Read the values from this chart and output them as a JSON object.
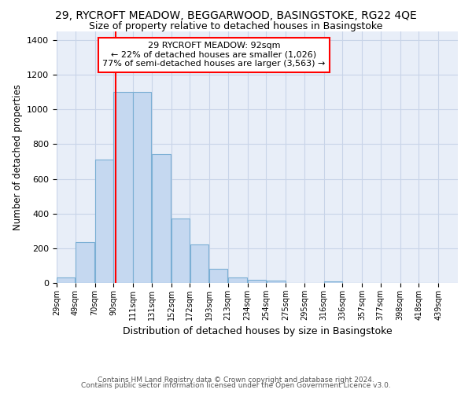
{
  "title_line1": "29, RYCROFT MEADOW, BEGGARWOOD, BASINGSTOKE, RG22 4QE",
  "title_line2": "Size of property relative to detached houses in Basingstoke",
  "xlabel": "Distribution of detached houses by size in Basingstoke",
  "ylabel": "Number of detached properties",
  "footnote_line1": "Contains HM Land Registry data © Crown copyright and database right 2024.",
  "footnote_line2": "Contains public sector information licensed under the Open Government Licence v3.0.",
  "bar_left_edges": [
    29,
    49,
    70,
    90,
    111,
    131,
    152,
    172,
    193,
    213,
    234,
    254,
    275,
    295,
    316,
    336,
    357,
    377,
    398,
    418
  ],
  "bar_widths": [
    20,
    21,
    20,
    21,
    20,
    21,
    20,
    20,
    20,
    21,
    20,
    21,
    20,
    21,
    20,
    21,
    20,
    21,
    20,
    21
  ],
  "bar_heights": [
    30,
    235,
    710,
    1100,
    1100,
    745,
    370,
    220,
    80,
    30,
    20,
    15,
    0,
    0,
    10,
    0,
    0,
    0,
    0,
    0
  ],
  "tick_labels": [
    "29sqm",
    "49sqm",
    "70sqm",
    "90sqm",
    "111sqm",
    "131sqm",
    "152sqm",
    "172sqm",
    "193sqm",
    "213sqm",
    "234sqm",
    "254sqm",
    "275sqm",
    "295sqm",
    "316sqm",
    "336sqm",
    "357sqm",
    "377sqm",
    "398sqm",
    "418sqm",
    "439sqm"
  ],
  "bar_color": "#c5d8f0",
  "bar_edge_color": "#7bafd4",
  "grid_color": "#c8d4e8",
  "background_color": "#e8eef8",
  "red_line_x": 92,
  "annotation_line1": "29 RYCROFT MEADOW: 92sqm",
  "annotation_line2": "← 22% of detached houses are smaller (1,026)",
  "annotation_line3": "77% of semi-detached houses are larger (3,563) →",
  "ylim": [
    0,
    1450
  ],
  "xlim": [
    29,
    460
  ],
  "yticks": [
    0,
    200,
    400,
    600,
    800,
    1000,
    1200,
    1400
  ]
}
